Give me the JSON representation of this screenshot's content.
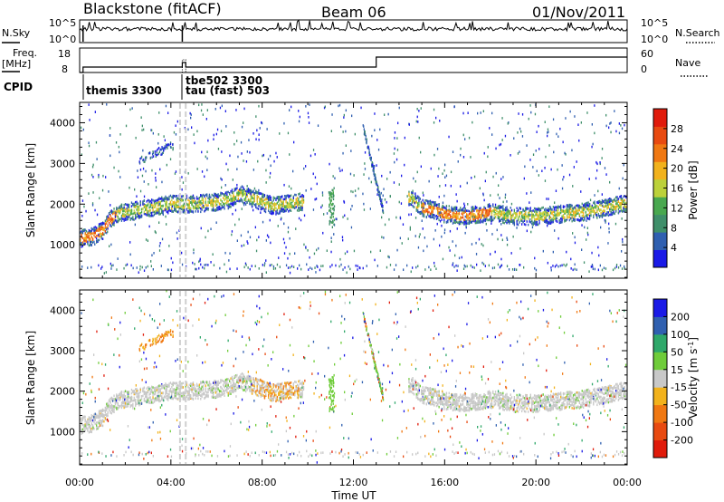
{
  "header": {
    "station": "Blackstone (fitACF)",
    "beam": "Beam 06",
    "date": "01/Nov/2011"
  },
  "summary_panel": {
    "nsky_label": "N.Sky",
    "nsearch_label": "N.Search",
    "freq_label_line1": "Freq.",
    "freq_label_line2": "[MHz]",
    "nave_label": "Nave",
    "cpid_label": "CPID",
    "noise_ticks_left": [
      "10^5",
      "10^0"
    ],
    "noise_ticks_right": [
      "10^5",
      "10^0"
    ],
    "freq_ticks": [
      "18",
      "8"
    ],
    "nave_ticks": [
      "60",
      "0"
    ],
    "cpid_entries": [
      "themis 3300",
      "tau (fast) 503",
      "tbe502 3300"
    ]
  },
  "chart_data": [
    {
      "type": "heatmap",
      "name": "Power panel",
      "xlabel": "",
      "ylabel": "Slant Range [km]",
      "x_ticks": [
        "00:00",
        "04:00",
        "08:00",
        "12:00",
        "16:00",
        "20:00",
        "00:00"
      ],
      "y_ticks": [
        "1000",
        "2000",
        "3000",
        "4000"
      ],
      "xlim_hours": [
        0,
        24
      ],
      "ylim_km": [
        180,
        4500
      ],
      "colorbar": {
        "label": "Power [dB]",
        "ticks": [
          "4",
          "8",
          "12",
          "16",
          "20",
          "24",
          "28"
        ],
        "range": [
          0,
          30
        ],
        "colors": [
          "#1a1ae6",
          "#2f5fb0",
          "#3f8f6a",
          "#49a84f",
          "#bcd13a",
          "#f2b21c",
          "#f07812",
          "#e84a10",
          "#e01b0b"
        ]
      },
      "trace_km": [
        [
          0.0,
          1150
        ],
        [
          0.5,
          1200
        ],
        [
          1.0,
          1350
        ],
        [
          1.3,
          1600
        ],
        [
          1.6,
          1750
        ],
        [
          2.0,
          1800
        ],
        [
          2.5,
          1850
        ],
        [
          3.0,
          1900
        ],
        [
          3.5,
          1950
        ],
        [
          4.0,
          2000
        ],
        [
          5.0,
          2000
        ],
        [
          6.0,
          2050
        ],
        [
          6.5,
          2100
        ],
        [
          7.0,
          2250
        ],
        [
          7.5,
          2150
        ],
        [
          8.0,
          2050
        ],
        [
          8.5,
          1950
        ],
        [
          9.0,
          2000
        ],
        [
          9.5,
          2050
        ],
        [
          14.5,
          2150
        ],
        [
          15.0,
          1900
        ],
        [
          15.5,
          1850
        ],
        [
          16.0,
          1750
        ],
        [
          17.0,
          1700
        ],
        [
          18.0,
          1800
        ],
        [
          19.0,
          1700
        ],
        [
          20.0,
          1700
        ],
        [
          21.0,
          1750
        ],
        [
          22.0,
          1800
        ],
        [
          23.0,
          1900
        ],
        [
          24.0,
          2050
        ]
      ],
      "grid": false
    },
    {
      "type": "heatmap",
      "name": "Velocity panel",
      "xlabel": "Time UT",
      "ylabel": "Slant Range [km]",
      "x_ticks": [
        "00:00",
        "04:00",
        "08:00",
        "12:00",
        "16:00",
        "20:00",
        "00:00"
      ],
      "y_ticks": [
        "1000",
        "2000",
        "3000",
        "4000"
      ],
      "xlim_hours": [
        0,
        24
      ],
      "ylim_km": [
        180,
        4500
      ],
      "colorbar": {
        "label": "Velocity [m s",
        "label_sup": "-1",
        "label_end": "]",
        "ticks": [
          "200",
          "100",
          "50",
          "15",
          "-15",
          "-50",
          "-100",
          "-200"
        ],
        "colors": [
          "#1a1ae6",
          "#3060b0",
          "#2fa86a",
          "#6fcc3a",
          "#c8c8c8",
          "#f2b21c",
          "#f07812",
          "#e84a10",
          "#e01b0b"
        ]
      },
      "grid": false
    }
  ]
}
